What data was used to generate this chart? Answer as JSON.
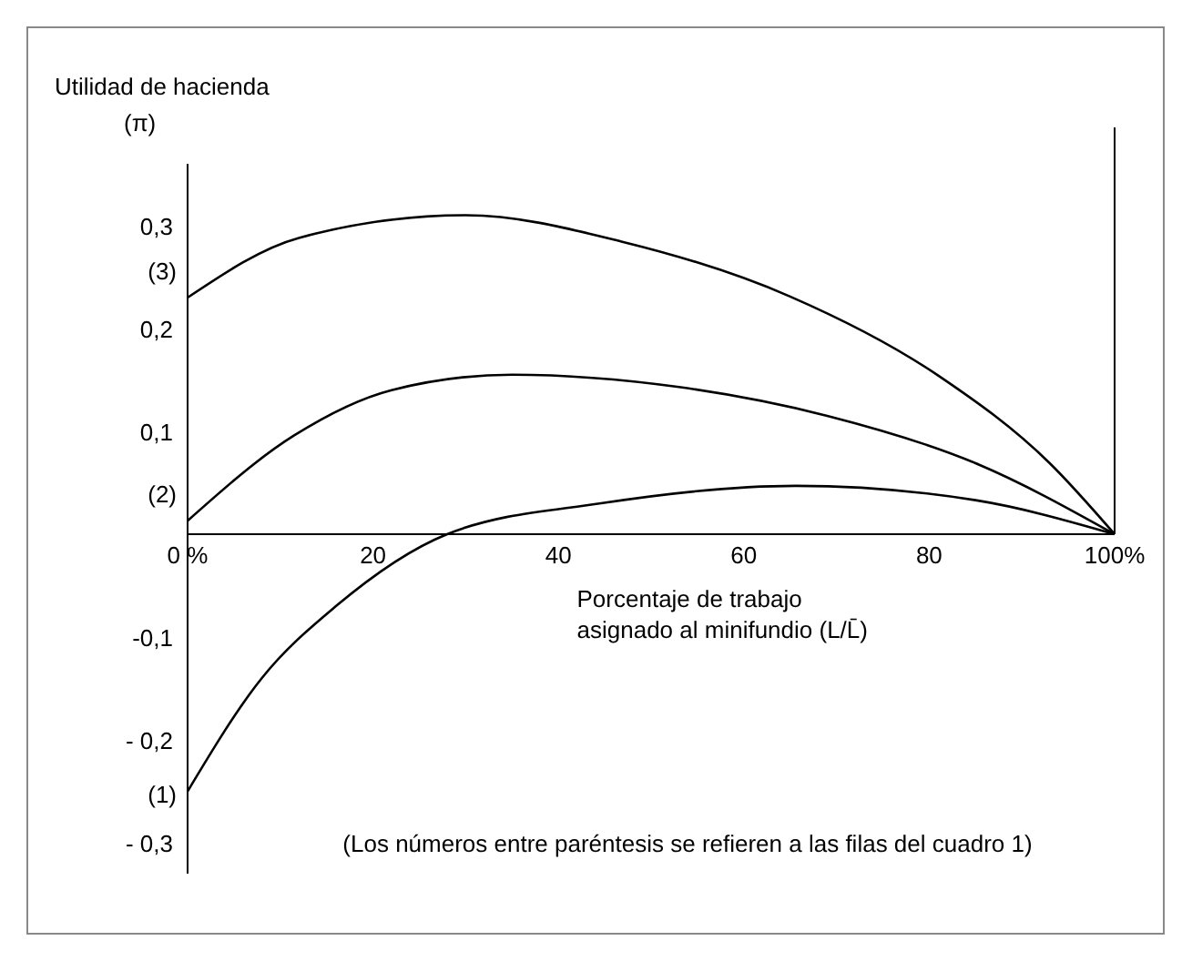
{
  "chart_data": {
    "type": "line",
    "xlabel": "Porcentaje de trabajo asignado al minifundio (L/L̄)",
    "ylabel": "Utilidad de hacienda (π)",
    "annotations": [
      "(Los números entre paréntesis se refieren a las filas del cuadro 1)"
    ],
    "xlim": [
      0,
      100
    ],
    "ylim": [
      -0.33,
      0.36
    ],
    "xticks": [
      {
        "value": 0,
        "label": "0 %"
      },
      20,
      40,
      60,
      80,
      {
        "value": 100,
        "label": "100%"
      }
    ],
    "yticks": [
      {
        "value": -0.3,
        "label": "- 0,3"
      },
      {
        "value": -0.2,
        "label": "- 0,2"
      },
      {
        "value": -0.1,
        "label": "-0,1"
      },
      {
        "value": 0.1,
        "label": "0,1"
      },
      {
        "value": 0.2,
        "label": "0,2"
      },
      {
        "value": 0.3,
        "label": "0,3"
      }
    ],
    "grid": false,
    "marker": "none",
    "line_style": "solid",
    "series": [
      {
        "name": "(3)",
        "color": "#000000",
        "x": [
          0,
          12,
          30,
          47,
          65,
          81,
          93,
          100
        ],
        "values": [
          0.23,
          0.288,
          0.31,
          0.284,
          0.231,
          0.154,
          0.069,
          0
        ]
      },
      {
        "name": "(2)",
        "color": "#000000",
        "x": [
          0,
          11.5,
          22,
          35,
          53,
          69,
          85,
          100
        ],
        "values": [
          0.013,
          0.096,
          0.14,
          0.155,
          0.143,
          0.115,
          0.069,
          0
        ]
      },
      {
        "name": "(1)",
        "color": "#000000",
        "x": [
          0,
          8,
          16,
          28,
          44.6,
          65.6,
          85,
          100
        ],
        "values": [
          -0.25,
          -0.14,
          -0.07,
          0,
          0.03,
          0.047,
          0.033,
          0
        ]
      }
    ]
  }
}
